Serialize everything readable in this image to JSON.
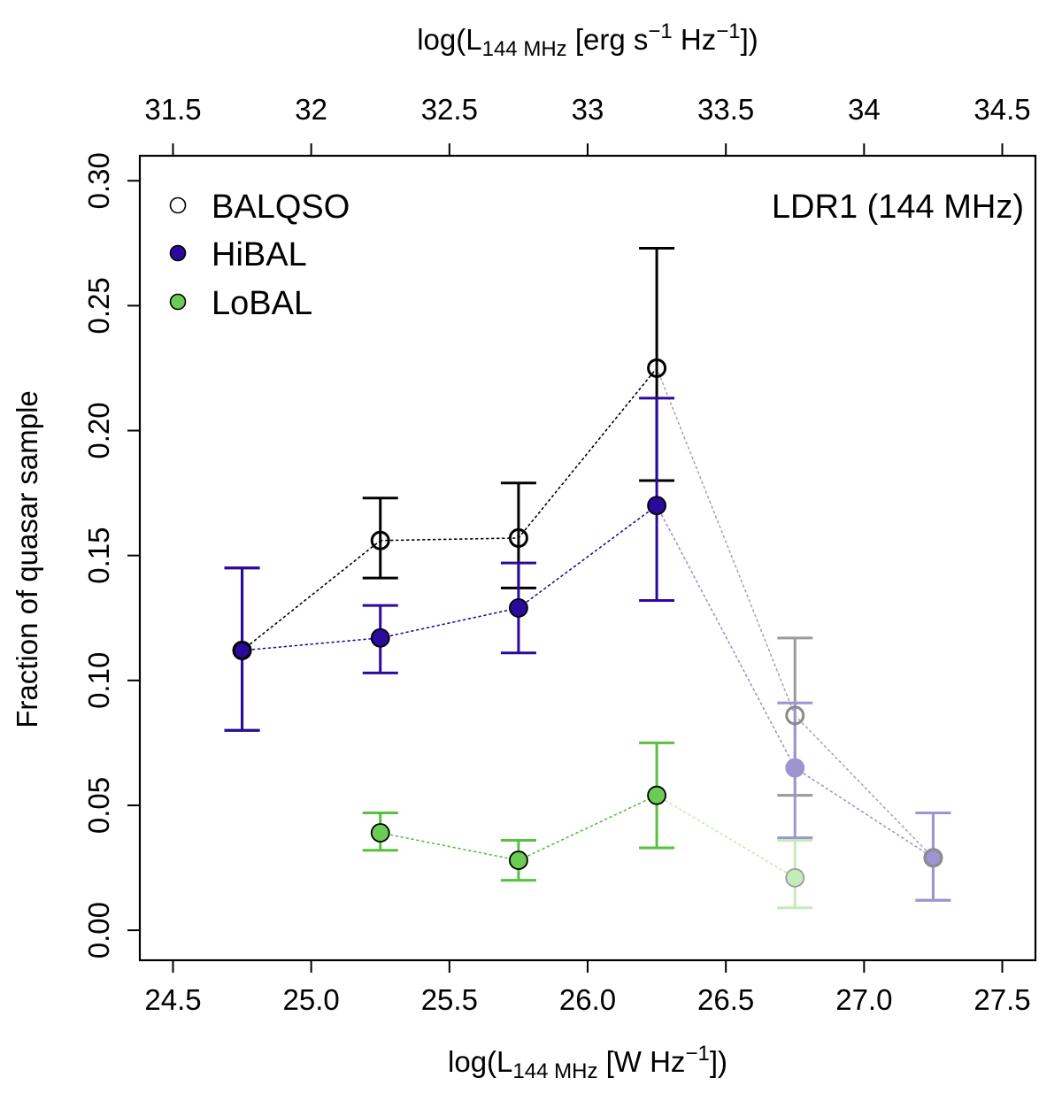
{
  "chart_data": {
    "type": "scatter",
    "annotation": "LDR1 (144 MHz)",
    "xlabel": {
      "prefix": "log(L",
      "sub": "144 MHz",
      "suffix": " [W Hz",
      "sup": "−1",
      "end": "])"
    },
    "top_xlabel": {
      "prefix": "log(L",
      "sub": "144 MHz",
      "suffix": " [erg s",
      "sup1": "−1",
      "mid": " Hz",
      "sup2": "−1",
      "end": "])"
    },
    "ylabel": "Fraction of quasar sample",
    "xlim": [
      24.38,
      27.62
    ],
    "ylim": [
      -0.012,
      0.31
    ],
    "x_ticks": [
      "24.5",
      "25.0",
      "25.5",
      "26.0",
      "26.5",
      "27.0",
      "27.5"
    ],
    "y_ticks": [
      "0.00",
      "0.05",
      "0.10",
      "0.15",
      "0.20",
      "0.25",
      "0.30"
    ],
    "top_ticks": [
      "31.5",
      "32",
      "32.5",
      "33",
      "33.5",
      "34",
      "34.5"
    ],
    "top_tick_offset": 7,
    "series": [
      {
        "name": "BALQSO",
        "marker": "open",
        "color": "#000000",
        "points": [
          {
            "x": 24.75,
            "y": 0.112,
            "lo": 0.08,
            "hi": 0.145,
            "faded": false
          },
          {
            "x": 25.25,
            "y": 0.156,
            "lo": 0.141,
            "hi": 0.173,
            "faded": false
          },
          {
            "x": 25.75,
            "y": 0.157,
            "lo": 0.137,
            "hi": 0.179,
            "faded": false
          },
          {
            "x": 26.25,
            "y": 0.225,
            "lo": 0.18,
            "hi": 0.273,
            "faded": false
          },
          {
            "x": 26.75,
            "y": 0.086,
            "lo": 0.054,
            "hi": 0.117,
            "faded": true
          },
          {
            "x": 27.25,
            "y": 0.029,
            "lo": 0.012,
            "hi": 0.047,
            "faded": true
          }
        ]
      },
      {
        "name": "HiBAL",
        "marker": "filled",
        "color": "#2a0a9c",
        "faded_color": "#9e94d0",
        "points": [
          {
            "x": 24.75,
            "y": 0.112,
            "lo": 0.08,
            "hi": 0.145,
            "faded": false
          },
          {
            "x": 25.25,
            "y": 0.117,
            "lo": 0.103,
            "hi": 0.13,
            "faded": false
          },
          {
            "x": 25.75,
            "y": 0.129,
            "lo": 0.111,
            "hi": 0.147,
            "faded": false
          },
          {
            "x": 26.25,
            "y": 0.17,
            "lo": 0.132,
            "hi": 0.213,
            "faded": false
          },
          {
            "x": 26.75,
            "y": 0.065,
            "lo": 0.037,
            "hi": 0.091,
            "faded": true
          },
          {
            "x": 27.25,
            "y": 0.029,
            "lo": 0.012,
            "hi": 0.047,
            "faded": true
          }
        ]
      },
      {
        "name": "LoBAL",
        "marker": "filled",
        "color": "#6acc55",
        "faded_color": "#c5ebb9",
        "points": [
          {
            "x": 25.25,
            "y": 0.039,
            "lo": 0.032,
            "hi": 0.047,
            "faded": false
          },
          {
            "x": 25.75,
            "y": 0.028,
            "lo": 0.02,
            "hi": 0.036,
            "faded": false
          },
          {
            "x": 26.25,
            "y": 0.054,
            "lo": 0.033,
            "hi": 0.075,
            "faded": false
          },
          {
            "x": 26.75,
            "y": 0.021,
            "lo": 0.009,
            "hi": 0.036,
            "faded": true
          }
        ]
      }
    ],
    "legend": {
      "position": "top-left",
      "entries": [
        "BALQSO",
        "HiBAL",
        "LoBAL"
      ]
    }
  }
}
